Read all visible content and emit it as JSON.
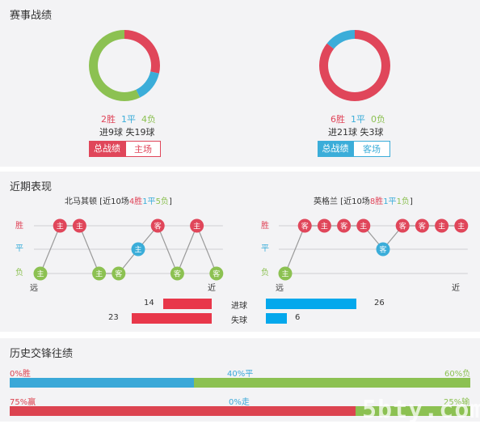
{
  "section1": {
    "title": "赛事战绩",
    "left": {
      "donut": [
        {
          "value": 2,
          "color": "#e0465a"
        },
        {
          "value": 1,
          "color": "#3badd9"
        },
        {
          "value": 4,
          "color": "#8cc152"
        }
      ],
      "wins": "2胜",
      "draws": "1平",
      "losses": "4负",
      "goals": "进9球  失19球",
      "tab_active": "总战绩",
      "tab_other": "主场"
    },
    "right": {
      "donut": [
        {
          "value": 6,
          "color": "#e0465a"
        },
        {
          "value": 1,
          "color": "#3badd9"
        },
        {
          "value": 0,
          "color": "#8cc152"
        }
      ],
      "wins": "6胜",
      "draws": "1平",
      "losses": "0负",
      "goals": "进21球  失3球",
      "tab_active": "总战绩",
      "tab_other": "客场"
    }
  },
  "section2": {
    "title": "近期表现",
    "left_team": {
      "name": "北马其顿",
      "prefix": " [近10场",
      "w": "4胜",
      "d": "1平",
      "l": "5负",
      "suffix": "]"
    },
    "right_team": {
      "name": "英格兰",
      "prefix": " [近10场",
      "w": "8胜",
      "d": "1平",
      "l": "1负",
      "suffix": "]"
    },
    "axis_labels": {
      "win": "胜",
      "draw": "平",
      "loss": "负"
    },
    "far_label": "远",
    "near_label": "近",
    "left_form": [
      {
        "r": "L",
        "t": "主"
      },
      {
        "r": "W",
        "t": "主"
      },
      {
        "r": "W",
        "t": "主"
      },
      {
        "r": "L",
        "t": "主"
      },
      {
        "r": "L",
        "t": "客"
      },
      {
        "r": "D",
        "t": "主"
      },
      {
        "r": "W",
        "t": "客"
      },
      {
        "r": "L",
        "t": "客"
      },
      {
        "r": "W",
        "t": "主"
      },
      {
        "r": "L",
        "t": "客"
      }
    ],
    "right_form": [
      {
        "r": "L",
        "t": "主"
      },
      {
        "r": "W",
        "t": "客"
      },
      {
        "r": "W",
        "t": "主"
      },
      {
        "r": "W",
        "t": "客"
      },
      {
        "r": "W",
        "t": "主"
      },
      {
        "r": "D",
        "t": "客"
      },
      {
        "r": "W",
        "t": "客"
      },
      {
        "r": "W",
        "t": "客"
      },
      {
        "r": "W",
        "t": "主"
      },
      {
        "r": "W",
        "t": "主"
      }
    ],
    "stats": {
      "goals_label": "进球",
      "conceded_label": "失球",
      "left_goals": 14,
      "left_conceded": 23,
      "right_goals": 26,
      "right_conceded": 6,
      "max": 30
    },
    "colors": {
      "left_bar": "#e8374a",
      "right_bar": "#04a8ec",
      "win": "#e0465a",
      "draw": "#3badd9",
      "loss": "#8cc152"
    }
  },
  "section3": {
    "title": "历史交锋往绩",
    "row1": {
      "left": "0%胜",
      "mid": "40%平",
      "right": "60%负",
      "win": 0,
      "draw": 40,
      "loss": 60
    },
    "row2": {
      "left": "75%赢",
      "mid": "0%走",
      "right": "25%输",
      "win": 75,
      "draw": 0,
      "loss": 25
    },
    "colors": {
      "red": "#dc4350",
      "blue": "#3ba8d8",
      "green": "#8cc152"
    }
  },
  "watermark": "5bty.com"
}
